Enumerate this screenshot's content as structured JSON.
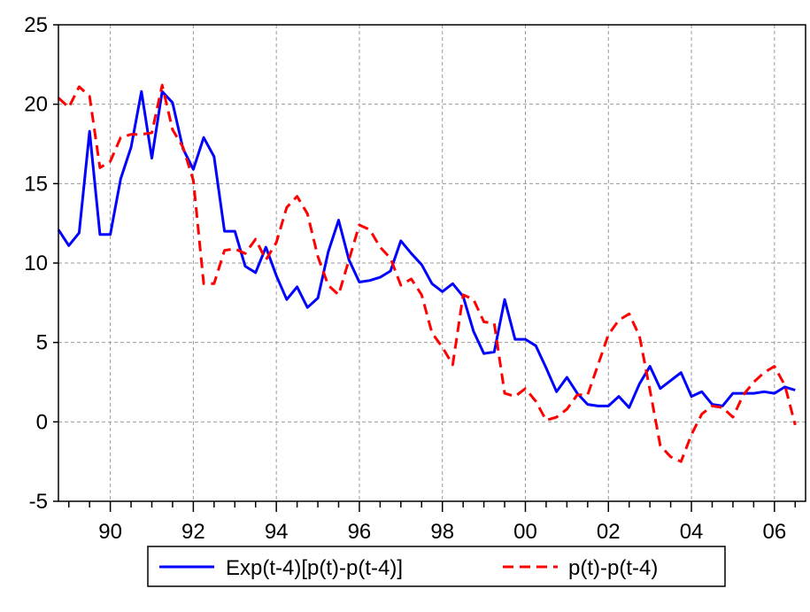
{
  "chart_data": {
    "type": "line",
    "title": "",
    "xlabel": "",
    "ylabel": "",
    "xlim": [
      1988.75,
      2006.75
    ],
    "ylim": [
      -5,
      25
    ],
    "yticks": [
      -5,
      0,
      5,
      10,
      15,
      20,
      25
    ],
    "xticks": [
      {
        "value": 1990,
        "label": "90"
      },
      {
        "value": 1992,
        "label": "92"
      },
      {
        "value": 1994,
        "label": "94"
      },
      {
        "value": 1996,
        "label": "96"
      },
      {
        "value": 1998,
        "label": "98"
      },
      {
        "value": 2000,
        "label": "00"
      },
      {
        "value": 2002,
        "label": "02"
      },
      {
        "value": 2004,
        "label": "04"
      },
      {
        "value": 2006,
        "label": "06"
      }
    ],
    "x_start": 1988.75,
    "x_step": 0.25,
    "grid": true,
    "legend_position": "bottom",
    "series": [
      {
        "name": "Exp(t-4)[p(t)-p(t-4)]",
        "color": "#0000ff",
        "style": "solid",
        "values": [
          12.1,
          11.1,
          11.9,
          18.3,
          11.8,
          11.8,
          15.3,
          17.3,
          20.8,
          16.6,
          20.8,
          20.1,
          17.2,
          15.9,
          17.9,
          16.7,
          12.0,
          12.0,
          9.8,
          9.4,
          11.0,
          9.2,
          7.7,
          8.5,
          7.2,
          7.8,
          10.7,
          12.7,
          10.2,
          8.8,
          8.9,
          9.1,
          9.5,
          11.4,
          10.6,
          9.9,
          8.7,
          8.2,
          8.7,
          7.9,
          5.7,
          4.3,
          4.4,
          7.7,
          5.2,
          5.2,
          4.8,
          3.4,
          1.9,
          2.8,
          1.8,
          1.1,
          1.0,
          1.0,
          1.6,
          0.9,
          2.4,
          3.5,
          2.1,
          2.6,
          3.1,
          1.6,
          1.9,
          1.1,
          1.0,
          1.8,
          1.8,
          1.8,
          1.9,
          1.8,
          2.2,
          2.0
        ]
      },
      {
        "name": "p(t)-p(t-4)",
        "color": "#ff0000",
        "style": "dashed",
        "values": [
          20.4,
          19.8,
          21.1,
          20.5,
          16.0,
          16.4,
          17.9,
          18.1,
          18.1,
          18.2,
          21.2,
          18.4,
          17.3,
          15.2,
          8.7,
          8.7,
          10.8,
          10.9,
          10.6,
          11.5,
          10.2,
          11.3,
          13.5,
          14.2,
          13.1,
          10.4,
          8.6,
          8.0,
          10.2,
          12.4,
          12.1,
          11.0,
          10.3,
          8.6,
          9.0,
          8.0,
          5.6,
          4.7,
          3.6,
          8.0,
          7.7,
          6.3,
          6.2,
          1.8,
          1.6,
          2.1,
          1.3,
          0.1,
          0.3,
          0.8,
          1.7,
          1.7,
          3.6,
          5.5,
          6.4,
          6.8,
          5.4,
          2.0,
          -1.5,
          -2.2,
          -2.5,
          -0.8,
          0.5,
          1.0,
          0.9,
          0.3,
          1.7,
          2.5,
          3.1,
          3.5,
          2.3,
          -0.2
        ]
      }
    ]
  }
}
